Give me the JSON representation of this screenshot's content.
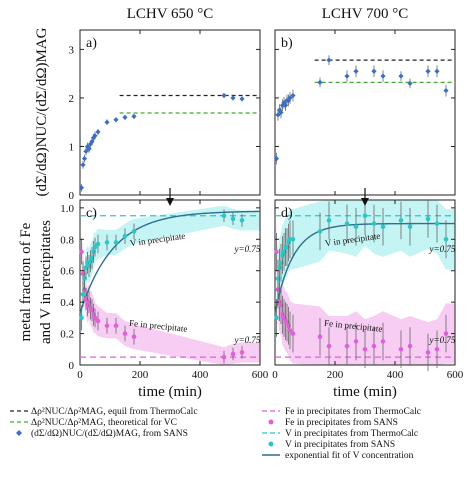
{
  "chart_data": [
    {
      "type": "scatter",
      "panel": "a",
      "title": "LCHV 650 °C",
      "x_ticks": [
        "0",
        "200",
        "400",
        "600"
      ],
      "y_ticks": [
        "0",
        "1",
        "2",
        "3"
      ],
      "xlim": [
        0,
        600
      ],
      "ylim": [
        0,
        3.4
      ],
      "grid": false,
      "hlines": [
        {
          "name": "Δρ²NUC/Δρ²MAG, equil from ThermoCalc",
          "y": 2.05,
          "color": "#222222",
          "dash": "4,3"
        },
        {
          "name": "Δρ²NUC/Δρ²MAG, theoretical for VC",
          "y": 1.69,
          "color": "#44aa33",
          "dash": "4,3"
        }
      ],
      "series": [
        {
          "name": "(dΣ/dΩ)NUC/(dΣ/dΩ)MAG, from SANS",
          "color": "#3a6fc4",
          "x": [
            5,
            10,
            15,
            20,
            25,
            30,
            35,
            40,
            45,
            50,
            60,
            90,
            120,
            150,
            180,
            480,
            510,
            540
          ],
          "y": [
            0.15,
            0.62,
            0.75,
            0.9,
            1.0,
            0.95,
            1.05,
            1.1,
            1.18,
            1.22,
            1.3,
            1.5,
            1.55,
            1.6,
            1.62,
            2.05,
            2.0,
            1.98
          ],
          "err": [
            0.08,
            0.08,
            0.08,
            0.08,
            0.08,
            0.08,
            0.08,
            0.08,
            0.08,
            0.08,
            0.06,
            0.06,
            0.05,
            0.05,
            0.05,
            0.05,
            0.05,
            0.05
          ]
        }
      ]
    },
    {
      "type": "scatter",
      "panel": "b",
      "title": "LCHV 700 °C",
      "x_ticks": [
        "0",
        "200",
        "400",
        "600"
      ],
      "xlim": [
        0,
        600
      ],
      "ylim": [
        0,
        3.4
      ],
      "grid": false,
      "hlines": [
        {
          "name": "Δρ²NUC/Δρ²MAG, equil from ThermoCalc",
          "y": 2.78,
          "color": "#222222",
          "dash": "4,3"
        },
        {
          "name": "Δρ²NUC/Δρ²MAG, theoretical for VC",
          "y": 2.32,
          "color": "#44aa33",
          "dash": "4,3"
        }
      ],
      "series": [
        {
          "name": "(dΣ/dΩ)NUC/(dΣ/dΩ)MAG, from SANS",
          "color": "#3a6fc4",
          "x": [
            5,
            10,
            15,
            20,
            25,
            30,
            35,
            40,
            45,
            50,
            60,
            150,
            180,
            240,
            270,
            330,
            360,
            420,
            450,
            510,
            540,
            570
          ],
          "y": [
            0.75,
            1.65,
            1.75,
            1.7,
            1.85,
            1.9,
            1.85,
            1.95,
            1.95,
            2.0,
            2.05,
            2.32,
            2.78,
            2.45,
            2.55,
            2.55,
            2.45,
            2.45,
            2.3,
            2.55,
            2.55,
            2.15
          ],
          "err": [
            0.12,
            0.12,
            0.12,
            0.12,
            0.12,
            0.12,
            0.12,
            0.12,
            0.12,
            0.12,
            0.12,
            0.1,
            0.1,
            0.12,
            0.12,
            0.12,
            0.12,
            0.1,
            0.1,
            0.12,
            0.12,
            0.12
          ]
        }
      ]
    },
    {
      "type": "scatter",
      "panel": "c",
      "x_ticks": [
        "0",
        "200",
        "400",
        "600"
      ],
      "y_ticks": [
        "0",
        "0.2",
        "0.4",
        "0.6",
        "0.8",
        "1.0"
      ],
      "xlim": [
        0,
        600
      ],
      "ylim": [
        0,
        1.05
      ],
      "grid": false,
      "annotations": [
        "V in precipitate",
        "Fe in precipitate",
        "y=0.75",
        "y=0.75"
      ],
      "arrow_at_x": 300,
      "hlines": [
        {
          "name": "Fe in precipitates from ThermoCalc",
          "y": 0.05,
          "color": "#e060d8",
          "dash": "6,4"
        },
        {
          "name": "V in precipitates from ThermoCalc",
          "y": 0.95,
          "color": "#2cc6c6",
          "dash": "6,4"
        }
      ],
      "series": [
        {
          "name": "V in precipitates from SANS",
          "color": "#2cc6c6",
          "x": [
            5,
            10,
            15,
            20,
            25,
            30,
            35,
            40,
            45,
            50,
            60,
            90,
            120,
            150,
            180,
            480,
            510,
            540
          ],
          "y": [
            0.3,
            0.45,
            0.55,
            0.62,
            0.65,
            0.63,
            0.66,
            0.68,
            0.72,
            0.75,
            0.77,
            0.78,
            0.78,
            0.82,
            0.85,
            0.95,
            0.93,
            0.92
          ],
          "err": [
            0.08,
            0.08,
            0.07,
            0.07,
            0.07,
            0.07,
            0.07,
            0.07,
            0.07,
            0.06,
            0.06,
            0.05,
            0.05,
            0.05,
            0.05,
            0.04,
            0.04,
            0.04
          ]
        },
        {
          "name": "Fe in precipitates from SANS",
          "color": "#e060d8",
          "x": [
            5,
            10,
            15,
            20,
            25,
            30,
            35,
            40,
            45,
            50,
            60,
            90,
            120,
            150,
            180,
            480,
            510,
            540
          ],
          "y": [
            0.72,
            0.58,
            0.48,
            0.42,
            0.38,
            0.4,
            0.36,
            0.35,
            0.32,
            0.3,
            0.28,
            0.25,
            0.25,
            0.2,
            0.18,
            0.05,
            0.07,
            0.08
          ],
          "err": [
            0.08,
            0.08,
            0.07,
            0.07,
            0.07,
            0.07,
            0.07,
            0.07,
            0.07,
            0.06,
            0.06,
            0.05,
            0.05,
            0.05,
            0.05,
            0.04,
            0.04,
            0.04
          ]
        }
      ],
      "fit": {
        "name": "exponential fit of V concentration",
        "color": "#2f6f8f",
        "y0": 0.33,
        "yinf": 0.98,
        "tau": 110
      }
    },
    {
      "type": "scatter",
      "panel": "d",
      "x_ticks": [
        "0",
        "200",
        "400",
        "600"
      ],
      "xlim": [
        0,
        600
      ],
      "ylim": [
        0,
        1.05
      ],
      "grid": false,
      "annotations": [
        "V in precipitate",
        "Fe in precipitate",
        "y=0.75",
        "y=0.75"
      ],
      "arrow_at_x": 300,
      "hlines": [
        {
          "name": "Fe in precipitates from ThermoCalc",
          "y": 0.05,
          "color": "#e060d8",
          "dash": "6,4"
        },
        {
          "name": "V in precipitates from ThermoCalc",
          "y": 0.95,
          "color": "#2cc6c6",
          "dash": "6,4"
        }
      ],
      "series": [
        {
          "name": "V in precipitates from SANS",
          "color": "#2cc6c6",
          "x": [
            5,
            10,
            15,
            20,
            25,
            30,
            35,
            40,
            45,
            50,
            60,
            150,
            180,
            240,
            270,
            300,
            330,
            360,
            420,
            450,
            510,
            540,
            570
          ],
          "y": [
            0.3,
            0.55,
            0.62,
            0.65,
            0.7,
            0.72,
            0.75,
            0.75,
            0.78,
            0.8,
            0.8,
            0.85,
            0.92,
            0.9,
            0.88,
            0.95,
            0.9,
            0.88,
            0.92,
            0.88,
            0.93,
            0.9,
            0.8
          ],
          "err": [
            0.12,
            0.12,
            0.12,
            0.12,
            0.12,
            0.12,
            0.12,
            0.12,
            0.12,
            0.12,
            0.12,
            0.12,
            0.12,
            0.12,
            0.12,
            0.12,
            0.12,
            0.12,
            0.12,
            0.12,
            0.12,
            0.12,
            0.12
          ]
        },
        {
          "name": "Fe in precipitates from SANS",
          "color": "#e060d8",
          "x": [
            5,
            10,
            15,
            20,
            25,
            30,
            35,
            40,
            45,
            50,
            60,
            150,
            180,
            240,
            270,
            300,
            330,
            360,
            420,
            450,
            510,
            540,
            570
          ],
          "y": [
            0.72,
            0.48,
            0.4,
            0.38,
            0.32,
            0.3,
            0.28,
            0.27,
            0.25,
            0.22,
            0.2,
            0.18,
            0.12,
            0.12,
            0.15,
            0.1,
            0.12,
            0.15,
            0.1,
            0.12,
            0.08,
            0.1,
            0.2
          ],
          "err": [
            0.12,
            0.12,
            0.12,
            0.12,
            0.12,
            0.12,
            0.12,
            0.12,
            0.12,
            0.12,
            0.12,
            0.12,
            0.12,
            0.12,
            0.12,
            0.12,
            0.12,
            0.12,
            0.12,
            0.12,
            0.12,
            0.12,
            0.12
          ]
        }
      ],
      "fit": {
        "name": "exponential fit of V concentration",
        "color": "#2f6f8f",
        "y0": 0.33,
        "yinf": 0.9,
        "tau": 60
      }
    }
  ],
  "axes": {
    "top_ylabel": "(dΣ/dΩ)NUC/(dΣ/dΩ)MAG",
    "bottom_ylabel_line1": "metal fraction of Fe",
    "bottom_ylabel_line2": "and V in precipitates",
    "xlabel": "time (min)"
  },
  "legend": {
    "left": [
      "Δρ²NUC/Δρ²MAG, equil from ThermoCalc",
      "Δρ²NUC/Δρ²MAG, theoretical for VC",
      "(dΣ/dΩ)NUC/(dΣ/dΩ)MAG, from SANS"
    ],
    "right": [
      "Fe in precipitates from ThermoCalc",
      "Fe in precipitates from SANS",
      "V in precipitates from ThermoCalc",
      "V in precipitates from SANS",
      "exponential fit of V concentration"
    ]
  },
  "colors": {
    "cyan_band": "#bff3f3",
    "magenta_band": "#f6c8f3"
  }
}
